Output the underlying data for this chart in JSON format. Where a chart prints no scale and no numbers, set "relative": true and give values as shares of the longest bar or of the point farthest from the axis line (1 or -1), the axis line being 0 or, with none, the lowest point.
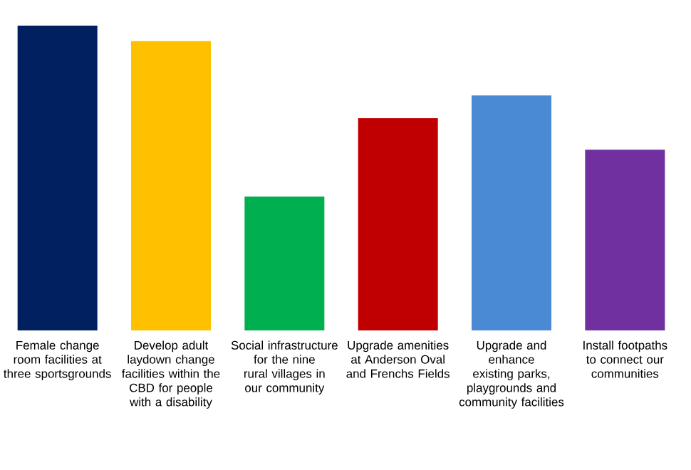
{
  "chart_data": {
    "type": "bar",
    "relative": true,
    "categories": [
      "Female change room facilities at three sportsgrounds",
      "Develop adult laydown change facilities within the CBD for people with a disability",
      "Social infrastructure for the nine rural villages in our community",
      "Upgrade amenities at Anderson Oval and Frenchs Fields",
      "Upgrade and enhance existing parks, playgrounds and community facilities",
      "Install footpaths to connect our communities"
    ],
    "values": [
      1,
      0.949,
      0.439,
      0.696,
      0.771,
      0.593
    ],
    "colors": [
      "#002060",
      "#ffc000",
      "#00b050",
      "#c00000",
      "#4a8ad4",
      "#7030a0"
    ]
  }
}
